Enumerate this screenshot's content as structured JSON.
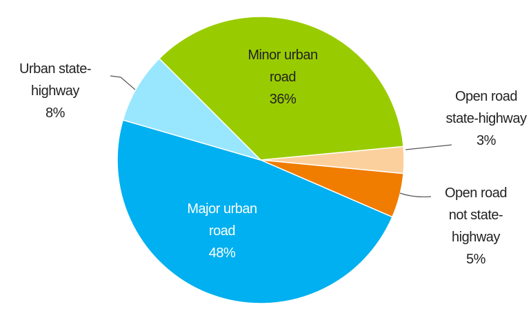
{
  "chart_data": {
    "type": "pie",
    "categories": [
      "Minor urban road",
      "Open road state-highway",
      "Open road not state-highway",
      "Major urban road",
      "Urban state-highway"
    ],
    "values": [
      36,
      3,
      5,
      48,
      8
    ],
    "value_labels": [
      "36%",
      "3%",
      "5%",
      "48%",
      "8%"
    ],
    "colors": [
      "#99cc00",
      "#fcd09c",
      "#f07c00",
      "#00b0f0",
      "#99e6ff"
    ]
  }
}
